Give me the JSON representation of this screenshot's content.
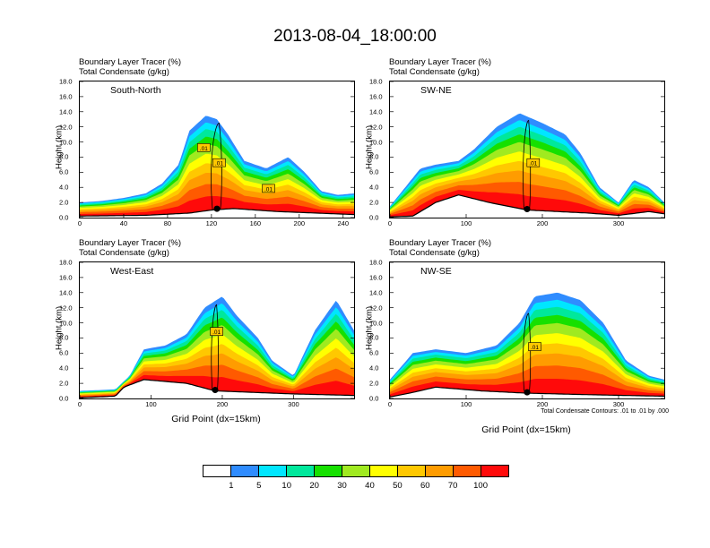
{
  "figure": {
    "title": "2013-08-04_18:00:00",
    "variable_line1": "Boundary Layer Tracer   (%)",
    "variable_line2": "Total Condensate   (g/kg)",
    "y_axis_label": "Height (km)",
    "x_axis_label": "Grid Point (dx=15km)",
    "contour_note": "Total Condensate Contours: .01 to .01 by .000",
    "contour_label": ".01"
  },
  "colorbar": {
    "colors": [
      "#ffffff",
      "#2f8cff",
      "#00e6ff",
      "#00e89c",
      "#16e000",
      "#a0ea20",
      "#ffff00",
      "#ffc800",
      "#ff9c00",
      "#ff5a00",
      "#ff0a0a"
    ],
    "labels": [
      "1",
      "5",
      "10",
      "20",
      "30",
      "40",
      "50",
      "60",
      "70",
      "100"
    ]
  },
  "chart_data": [
    {
      "type": "heatmap",
      "panel_label": "South-North",
      "title": "Boundary Layer Tracer (%) / Total Condensate (g/kg)",
      "xlabel": "",
      "ylabel": "Height (km)",
      "xlim": [
        0,
        250
      ],
      "ylim": [
        0,
        18
      ],
      "xticks": [
        "0",
        "40",
        "80",
        "120",
        "160",
        "200",
        "240"
      ],
      "yticks": [
        "0.0",
        "2.0",
        "4.0",
        "6.0",
        "8.0",
        "10.0",
        "12.0",
        "14.0",
        "16.0",
        "18.0"
      ],
      "tracer_top_km": [
        {
          "x": 0,
          "y": 2.0
        },
        {
          "x": 20,
          "y": 2.2
        },
        {
          "x": 40,
          "y": 2.6
        },
        {
          "x": 60,
          "y": 3.2
        },
        {
          "x": 75,
          "y": 4.5
        },
        {
          "x": 90,
          "y": 7.0
        },
        {
          "x": 100,
          "y": 11.5
        },
        {
          "x": 115,
          "y": 13.5
        },
        {
          "x": 125,
          "y": 13.0
        },
        {
          "x": 135,
          "y": 11.0
        },
        {
          "x": 150,
          "y": 7.5
        },
        {
          "x": 170,
          "y": 6.5
        },
        {
          "x": 190,
          "y": 8.0
        },
        {
          "x": 205,
          "y": 6.0
        },
        {
          "x": 220,
          "y": 3.5
        },
        {
          "x": 235,
          "y": 3.0
        },
        {
          "x": 250,
          "y": 3.2
        }
      ],
      "terrain_km": [
        {
          "x": 0,
          "y": 0.2
        },
        {
          "x": 60,
          "y": 0.3
        },
        {
          "x": 100,
          "y": 0.6
        },
        {
          "x": 120,
          "y": 1.0
        },
        {
          "x": 140,
          "y": 1.2
        },
        {
          "x": 180,
          "y": 0.8
        },
        {
          "x": 250,
          "y": 0.4
        }
      ],
      "cross_point_x": 125,
      "contour_label_positions": [
        {
          "x": 113,
          "y": 9.2
        },
        {
          "x": 127,
          "y": 7.2
        },
        {
          "x": 172,
          "y": 3.8
        }
      ]
    },
    {
      "type": "heatmap",
      "panel_label": "SW-NE",
      "title": "Boundary Layer Tracer (%) / Total Condensate (g/kg)",
      "xlabel": "",
      "ylabel": "Height (km)",
      "xlim": [
        0,
        360
      ],
      "ylim": [
        0,
        18
      ],
      "xticks": [
        "0",
        "100",
        "200",
        "300"
      ],
      "yticks": [
        "0.0",
        "2.0",
        "4.0",
        "6.0",
        "8.0",
        "10.0",
        "12.0",
        "14.0",
        "16.0",
        "18.0"
      ],
      "tracer_top_km": [
        {
          "x": 0,
          "y": 1.5
        },
        {
          "x": 20,
          "y": 4.0
        },
        {
          "x": 40,
          "y": 6.5
        },
        {
          "x": 60,
          "y": 7.0
        },
        {
          "x": 90,
          "y": 7.5
        },
        {
          "x": 110,
          "y": 9.0
        },
        {
          "x": 140,
          "y": 12.0
        },
        {
          "x": 170,
          "y": 13.8
        },
        {
          "x": 200,
          "y": 12.5
        },
        {
          "x": 230,
          "y": 11.0
        },
        {
          "x": 250,
          "y": 8.5
        },
        {
          "x": 275,
          "y": 4.0
        },
        {
          "x": 300,
          "y": 2.0
        },
        {
          "x": 320,
          "y": 5.0
        },
        {
          "x": 340,
          "y": 4.0
        },
        {
          "x": 360,
          "y": 2.0
        }
      ],
      "terrain_km": [
        {
          "x": 0,
          "y": 0.1
        },
        {
          "x": 30,
          "y": 0.2
        },
        {
          "x": 60,
          "y": 2.0
        },
        {
          "x": 90,
          "y": 3.0
        },
        {
          "x": 130,
          "y": 2.0
        },
        {
          "x": 180,
          "y": 1.0
        },
        {
          "x": 260,
          "y": 0.6
        },
        {
          "x": 300,
          "y": 0.3
        },
        {
          "x": 340,
          "y": 0.8
        },
        {
          "x": 360,
          "y": 0.5
        }
      ],
      "cross_point_x": 180,
      "contour_label_positions": [
        {
          "x": 188,
          "y": 7.2
        }
      ]
    },
    {
      "type": "heatmap",
      "panel_label": "West-East",
      "title": "Boundary Layer Tracer (%) / Total Condensate (g/kg)",
      "xlabel": "Grid Point (dx=15km)",
      "ylabel": "Height (km)",
      "xlim": [
        0,
        385
      ],
      "ylim": [
        0,
        18
      ],
      "xticks": [
        "0",
        "100",
        "200",
        "300"
      ],
      "yticks": [
        "0.0",
        "2.0",
        "4.0",
        "6.0",
        "8.0",
        "10.0",
        "12.0",
        "14.0",
        "16.0",
        "18.0"
      ],
      "tracer_top_km": [
        {
          "x": 0,
          "y": 1.0
        },
        {
          "x": 50,
          "y": 1.2
        },
        {
          "x": 70,
          "y": 3.0
        },
        {
          "x": 90,
          "y": 6.5
        },
        {
          "x": 120,
          "y": 7.0
        },
        {
          "x": 150,
          "y": 8.5
        },
        {
          "x": 175,
          "y": 12.0
        },
        {
          "x": 200,
          "y": 13.5
        },
        {
          "x": 220,
          "y": 11.0
        },
        {
          "x": 250,
          "y": 8.0
        },
        {
          "x": 270,
          "y": 5.0
        },
        {
          "x": 300,
          "y": 3.0
        },
        {
          "x": 330,
          "y": 9.0
        },
        {
          "x": 360,
          "y": 13.0
        },
        {
          "x": 385,
          "y": 9.0
        }
      ],
      "terrain_km": [
        {
          "x": 0,
          "y": 0.1
        },
        {
          "x": 50,
          "y": 0.3
        },
        {
          "x": 62,
          "y": 1.5
        },
        {
          "x": 90,
          "y": 2.5
        },
        {
          "x": 150,
          "y": 2.0
        },
        {
          "x": 190,
          "y": 1.0
        },
        {
          "x": 300,
          "y": 0.6
        },
        {
          "x": 385,
          "y": 0.4
        }
      ],
      "cross_point_x": 190,
      "contour_label_positions": [
        {
          "x": 192,
          "y": 8.8
        }
      ]
    },
    {
      "type": "heatmap",
      "panel_label": "NW-SE",
      "title": "Boundary Layer Tracer (%) / Total Condensate (g/kg)",
      "xlabel": "Grid Point (dx=15km)",
      "ylabel": "Height (km)",
      "xlim": [
        0,
        360
      ],
      "ylim": [
        0,
        18
      ],
      "xticks": [
        "0",
        "100",
        "200",
        "300"
      ],
      "yticks": [
        "0.0",
        "2.0",
        "4.0",
        "6.0",
        "8.0",
        "10.0",
        "12.0",
        "14.0",
        "16.0",
        "18.0"
      ],
      "tracer_top_km": [
        {
          "x": 0,
          "y": 2.5
        },
        {
          "x": 30,
          "y": 6.0
        },
        {
          "x": 60,
          "y": 6.5
        },
        {
          "x": 100,
          "y": 6.0
        },
        {
          "x": 140,
          "y": 7.0
        },
        {
          "x": 170,
          "y": 10.0
        },
        {
          "x": 190,
          "y": 13.5
        },
        {
          "x": 220,
          "y": 14.0
        },
        {
          "x": 250,
          "y": 13.0
        },
        {
          "x": 280,
          "y": 10.0
        },
        {
          "x": 310,
          "y": 5.0
        },
        {
          "x": 340,
          "y": 3.0
        },
        {
          "x": 360,
          "y": 2.5
        }
      ],
      "terrain_km": [
        {
          "x": 0,
          "y": 0.2
        },
        {
          "x": 30,
          "y": 0.8
        },
        {
          "x": 60,
          "y": 1.5
        },
        {
          "x": 120,
          "y": 1.0
        },
        {
          "x": 180,
          "y": 0.7
        },
        {
          "x": 260,
          "y": 0.5
        },
        {
          "x": 360,
          "y": 0.3
        }
      ],
      "cross_point_x": 180,
      "contour_label_positions": [
        {
          "x": 190,
          "y": 6.8
        }
      ]
    }
  ]
}
